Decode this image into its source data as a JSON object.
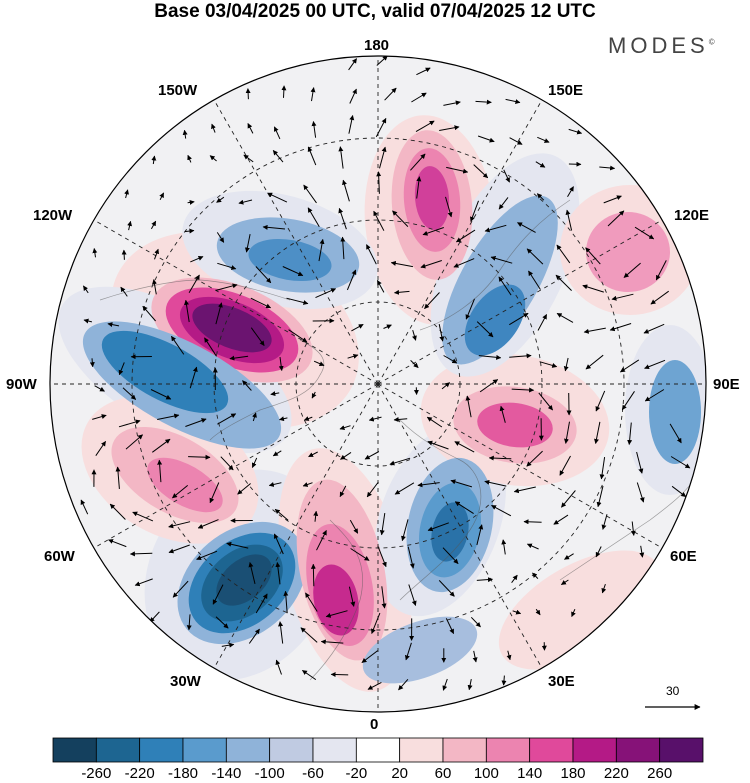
{
  "title": "Base 03/04/2025 00 UTC, valid 07/04/2025 12 UTC",
  "brand": "MODES",
  "brand_mark": "©",
  "longitude_labels": {
    "top": "180",
    "bottom": "0",
    "left": "90W",
    "right": "90E",
    "upper_left_1": "150W",
    "upper_left_2": "120W",
    "upper_right_1": "150E",
    "upper_right_2": "120E",
    "lower_left_1": "60W",
    "lower_left_2": "30W",
    "lower_right_1": "60E",
    "lower_right_2": "30E"
  },
  "reference_vector": {
    "value": "30"
  },
  "colorbar": {
    "ticks": [
      "-260",
      "-220",
      "-180",
      "-140",
      "-100",
      "-60",
      "-20",
      "20",
      "60",
      "100",
      "140",
      "180",
      "220",
      "260"
    ],
    "colors": [
      "#14405e",
      "#1d6591",
      "#2f80b8",
      "#5a9bcd",
      "#8fb3d9",
      "#c0cbe2",
      "#e4e6f0",
      "#ffffff",
      "#f8dede",
      "#f3b7c5",
      "#ec84b0",
      "#e0499b",
      "#b41a86",
      "#861278",
      "#58106a"
    ]
  },
  "anomalies": [
    {
      "id": "a1",
      "level": 230,
      "color": "#6b1470"
    },
    {
      "id": "a2",
      "level": -240,
      "color": "#1a4f74"
    },
    {
      "id": "a3",
      "level": 180,
      "color": "#c62a8e"
    },
    {
      "id": "a4",
      "level": 160,
      "color": "#d1409a"
    },
    {
      "id": "a5",
      "level": -140,
      "color": "#2f80b8"
    },
    {
      "id": "a6",
      "level": -180,
      "color": "#2a72a8"
    },
    {
      "id": "a7",
      "level": 140,
      "color": "#e35a9f"
    },
    {
      "id": "a8",
      "level": 120,
      "color": "#ec84b0"
    },
    {
      "id": "a9",
      "level": -120,
      "color": "#4d8fc6"
    },
    {
      "id": "a10",
      "level": -140,
      "color": "#3f86c0"
    },
    {
      "id": "a11",
      "level": -100,
      "color": "#6ea4d2"
    },
    {
      "id": "a12",
      "level": 100,
      "color": "#f09bbd"
    },
    {
      "id": "a13",
      "level": -80,
      "color": "#a7bede"
    }
  ]
}
